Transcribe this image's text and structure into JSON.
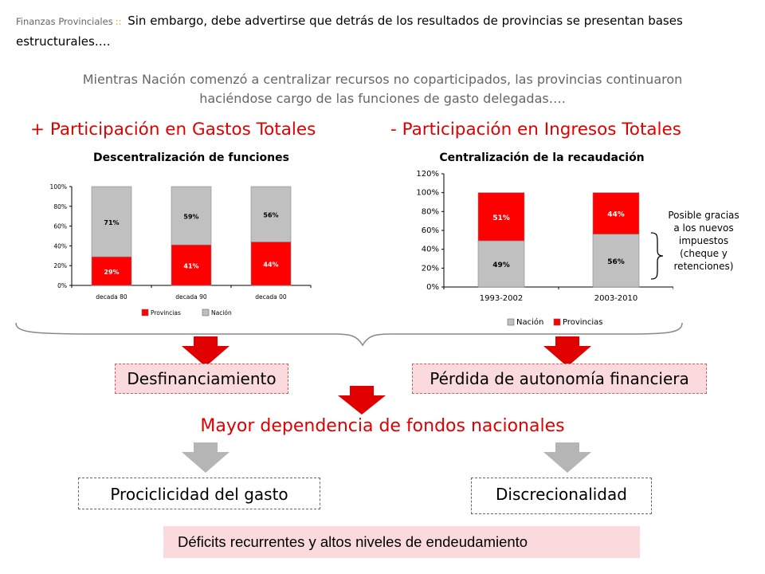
{
  "header": {
    "section": "Finanzas Provinciales",
    "separator": "::",
    "text": "Sin embargo, debe advertirse que detrás de los resultados de provincias se presentan bases estructurales…."
  },
  "subtitle": "Mientras Nación comenzó a centralizar recursos no coparticipados, las provincias continuaron haciéndose cargo de las funciones de gasto delegadas….",
  "left_heading": "+ Participación en Gastos Totales",
  "right_heading": "- Participación en Ingresos Totales",
  "note": "Posible gracias a los nuevos impuestos (cheque y retenciones)",
  "flow": {
    "box_left": "Desfinanciamiento",
    "box_right": "Pérdida de autonomía financiera",
    "center_statement": "Mayor dependencia de fondos nacionales",
    "box_bottom_left": "Prociclicidad del gasto",
    "box_bottom_right": "Discrecionalidad",
    "conclusion": "Déficits recurrentes y altos niveles de endeudamiento"
  },
  "colors": {
    "provincias": "#ff0000",
    "nacion": "#c0c0c0",
    "accent": "#e00000",
    "pink": "#fadadd"
  },
  "chart_data": [
    {
      "type": "bar",
      "stacked": true,
      "title": "Descentralización de funciones",
      "categories": [
        "decada 80",
        "decada 90",
        "decada 00"
      ],
      "yticks": [
        "0%",
        "20%",
        "40%",
        "60%",
        "80%",
        "100%"
      ],
      "ylim": [
        0,
        100
      ],
      "series": [
        {
          "name": "Provincias",
          "values": [
            29,
            41,
            44
          ],
          "labels": [
            "29%",
            "41%",
            "44%"
          ],
          "color": "#ff0000",
          "label_color": "#ffffff"
        },
        {
          "name": "Nación",
          "values": [
            71,
            59,
            56
          ],
          "labels": [
            "71%",
            "59%",
            "56%"
          ],
          "color": "#c0c0c0",
          "label_color": "#000000"
        }
      ],
      "legend": [
        "Provincias",
        "Nación"
      ],
      "legend_position": "bottom"
    },
    {
      "type": "bar",
      "stacked": true,
      "title": "Centralización de la recaudación",
      "categories": [
        "1993-2002",
        "2003-2010"
      ],
      "yticks": [
        "0%",
        "20%",
        "40%",
        "60%",
        "80%",
        "100%",
        "120%"
      ],
      "ylim": [
        0,
        120
      ],
      "series": [
        {
          "name": "Nación",
          "values": [
            49,
            56
          ],
          "labels": [
            "49%",
            "56%"
          ],
          "color": "#c0c0c0",
          "label_color": "#000000"
        },
        {
          "name": "Provincias",
          "values": [
            51,
            44
          ],
          "labels": [
            "51%",
            "44%"
          ],
          "color": "#ff0000",
          "label_color": "#ffffff"
        }
      ],
      "legend": [
        "Nación",
        "Provincias"
      ],
      "legend_position": "bottom"
    }
  ]
}
